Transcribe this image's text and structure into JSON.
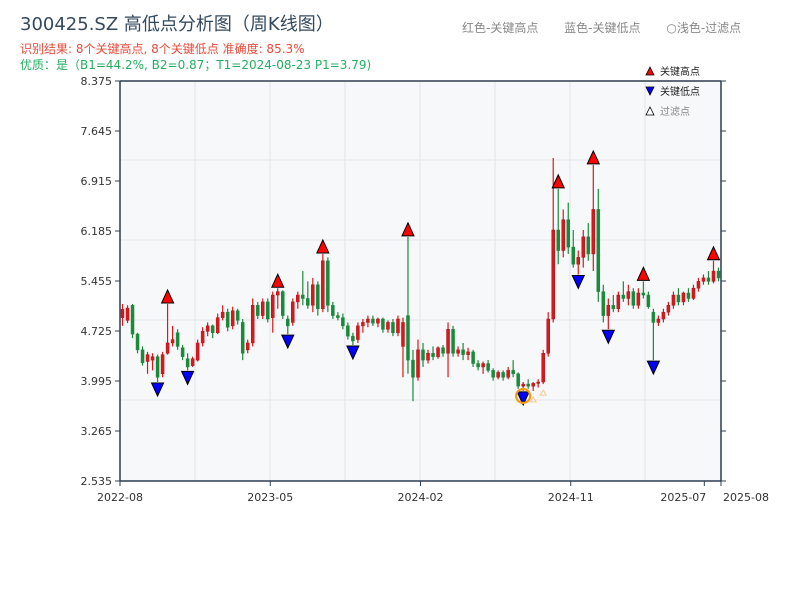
{
  "header": {
    "title": "300425.SZ 高低点分析图（周K线图）",
    "result_line": "识别结果: 8个关键高点, 8个关键低点  准确度: 85.3%",
    "quality_line": "优质：是（B1=44.2%, B2=0.87；T1=2024-08-23 P1=3.79)",
    "legend_red": "红色-关键高点",
    "legend_blue": "蓝色-关键低点",
    "legend_light": "○浅色-过滤点"
  },
  "colors": {
    "up": "#d7191c",
    "down": "#1a8a3a",
    "high_marker": "#ff0000",
    "low_marker": "#0000ff",
    "filtered": "#f39c12",
    "plot_bg": "#f7f8fa",
    "axis": "#2c3e50"
  },
  "chart_data": {
    "type": "candlestick",
    "title": "300425.SZ 高低点分析图（周K线图）",
    "ylim": [
      2.535,
      8.375
    ],
    "yticks": [
      "8.375",
      "7.645",
      "6.915",
      "6.185",
      "5.455",
      "4.725",
      "3.995",
      "3.265",
      "2.535"
    ],
    "xticks": [
      "2022-08",
      "2023-05",
      "2024-02",
      "2024-11",
      "2025-07",
      "2025-08"
    ],
    "xtick_months": [
      0,
      9,
      18,
      27,
      35,
      36
    ],
    "x_months_span": 36,
    "grid": true,
    "legend_placement": "top-right",
    "legend": [
      {
        "label": "关键高点",
        "symbol": "triangle-up",
        "color": "#ff0000"
      },
      {
        "label": "关键低点",
        "symbol": "triangle-down",
        "color": "#0000ff"
      },
      {
        "label": "过滤点",
        "symbol": "triangle-up-hollow",
        "color": "#ffffff"
      }
    ],
    "ohlc": [
      [
        4.92,
        5.12,
        4.8,
        5.04
      ],
      [
        4.88,
        5.1,
        4.84,
        5.06
      ],
      [
        5.1,
        5.12,
        4.62,
        4.68
      ],
      [
        4.68,
        4.7,
        4.4,
        4.45
      ],
      [
        4.45,
        4.5,
        4.22,
        4.26
      ],
      [
        4.28,
        4.42,
        4.1,
        4.38
      ],
      [
        4.3,
        4.4,
        4.15,
        4.35
      ],
      [
        4.35,
        4.38,
        3.98,
        4.05
      ],
      [
        4.1,
        4.42,
        4.05,
        4.38
      ],
      [
        4.4,
        5.12,
        4.38,
        4.55
      ],
      [
        4.55,
        4.8,
        4.5,
        4.6
      ],
      [
        4.7,
        4.75,
        4.45,
        4.5
      ],
      [
        4.48,
        4.52,
        4.3,
        4.35
      ],
      [
        4.32,
        4.4,
        4.15,
        4.2
      ],
      [
        4.22,
        4.35,
        4.2,
        4.32
      ],
      [
        4.3,
        4.6,
        4.28,
        4.55
      ],
      [
        4.55,
        4.78,
        4.5,
        4.72
      ],
      [
        4.72,
        4.85,
        4.65,
        4.8
      ],
      [
        4.8,
        4.82,
        4.62,
        4.7
      ],
      [
        4.7,
        4.98,
        4.68,
        4.92
      ],
      [
        4.92,
        5.1,
        4.88,
        5.0
      ],
      [
        5.0,
        5.05,
        4.72,
        4.78
      ],
      [
        4.8,
        5.08,
        4.75,
        5.02
      ],
      [
        5.02,
        5.05,
        4.82,
        4.88
      ],
      [
        4.85,
        4.9,
        4.3,
        4.4
      ],
      [
        4.45,
        4.6,
        4.4,
        4.55
      ],
      [
        4.55,
        5.2,
        4.5,
        5.1
      ],
      [
        5.1,
        5.15,
        4.9,
        4.95
      ],
      [
        4.95,
        5.2,
        4.9,
        5.15
      ],
      [
        5.15,
        5.2,
        4.85,
        4.9
      ],
      [
        4.92,
        5.3,
        4.7,
        5.25
      ],
      [
        5.25,
        5.35,
        5.05,
        5.3
      ],
      [
        5.3,
        5.32,
        4.9,
        4.95
      ],
      [
        4.9,
        4.95,
        4.68,
        4.8
      ],
      [
        4.85,
        5.2,
        4.8,
        5.15
      ],
      [
        5.15,
        5.3,
        5.05,
        5.25
      ],
      [
        5.25,
        5.6,
        5.1,
        5.2
      ],
      [
        5.2,
        5.45,
        5.05,
        5.1
      ],
      [
        5.1,
        5.5,
        5.0,
        5.4
      ],
      [
        5.4,
        5.45,
        4.95,
        5.05
      ],
      [
        5.05,
        5.85,
        5.0,
        5.75
      ],
      [
        5.75,
        5.8,
        5.0,
        5.1
      ],
      [
        5.1,
        5.15,
        4.9,
        4.95
      ],
      [
        4.95,
        5.0,
        4.88,
        4.92
      ],
      [
        4.92,
        4.98,
        4.75,
        4.8
      ],
      [
        4.8,
        4.85,
        4.6,
        4.65
      ],
      [
        4.65,
        4.7,
        4.52,
        4.58
      ],
      [
        4.6,
        4.85,
        4.55,
        4.8
      ],
      [
        4.8,
        4.9,
        4.7,
        4.85
      ],
      [
        4.85,
        4.95,
        4.78,
        4.9
      ],
      [
        4.9,
        4.95,
        4.8,
        4.84
      ],
      [
        4.84,
        4.92,
        4.78,
        4.9
      ],
      [
        4.9,
        4.92,
        4.7,
        4.75
      ],
      [
        4.75,
        4.88,
        4.7,
        4.85
      ],
      [
        4.85,
        4.9,
        4.65,
        4.7
      ],
      [
        4.7,
        4.95,
        4.65,
        4.9
      ],
      [
        4.5,
        4.92,
        4.05,
        4.85
      ],
      [
        4.95,
        6.1,
        4.1,
        4.3
      ],
      [
        4.3,
        4.45,
        3.7,
        4.05
      ],
      [
        4.05,
        4.6,
        4.0,
        4.45
      ],
      [
        4.45,
        4.55,
        4.2,
        4.3
      ],
      [
        4.3,
        4.45,
        4.25,
        4.4
      ],
      [
        4.4,
        4.5,
        4.3,
        4.35
      ],
      [
        4.35,
        4.5,
        4.32,
        4.48
      ],
      [
        4.48,
        4.52,
        4.35,
        4.4
      ],
      [
        4.4,
        4.85,
        4.05,
        4.75
      ],
      [
        4.75,
        4.8,
        4.35,
        4.4
      ],
      [
        4.4,
        4.5,
        4.35,
        4.45
      ],
      [
        4.45,
        4.55,
        4.3,
        4.38
      ],
      [
        4.38,
        4.48,
        4.3,
        4.42
      ],
      [
        4.42,
        4.45,
        4.2,
        4.25
      ],
      [
        4.25,
        4.3,
        4.15,
        4.2
      ],
      [
        4.2,
        4.28,
        4.1,
        4.25
      ],
      [
        4.25,
        4.3,
        4.12,
        4.15
      ],
      [
        4.15,
        4.18,
        4.0,
        4.05
      ],
      [
        4.05,
        4.15,
        4.02,
        4.12
      ],
      [
        4.12,
        4.15,
        4.0,
        4.05
      ],
      [
        4.05,
        4.2,
        4.02,
        4.15
      ],
      [
        4.15,
        4.3,
        4.05,
        4.1
      ],
      [
        4.1,
        4.12,
        3.88,
        3.92
      ],
      [
        3.92,
        3.98,
        3.85,
        3.95
      ],
      [
        3.95,
        4.02,
        3.88,
        3.92
      ],
      [
        3.92,
        3.98,
        3.85,
        3.96
      ],
      [
        3.96,
        4.02,
        3.9,
        3.98
      ],
      [
        3.98,
        4.45,
        3.95,
        4.4
      ],
      [
        4.4,
        5.0,
        4.35,
        4.9
      ],
      [
        4.9,
        7.25,
        4.85,
        6.2
      ],
      [
        6.2,
        6.8,
        5.7,
        5.9
      ],
      [
        5.9,
        6.5,
        5.8,
        6.35
      ],
      [
        6.35,
        6.6,
        5.85,
        5.95
      ],
      [
        5.95,
        6.2,
        5.65,
        5.7
      ],
      [
        5.7,
        5.9,
        5.55,
        5.8
      ],
      [
        5.8,
        6.2,
        5.65,
        6.1
      ],
      [
        6.1,
        6.3,
        5.75,
        5.85
      ],
      [
        5.85,
        7.15,
        5.6,
        6.5
      ],
      [
        6.5,
        6.8,
        5.15,
        5.3
      ],
      [
        5.3,
        5.4,
        4.85,
        4.95
      ],
      [
        4.95,
        5.2,
        4.75,
        5.1
      ],
      [
        5.1,
        5.25,
        5.0,
        5.05
      ],
      [
        5.05,
        5.3,
        5.0,
        5.25
      ],
      [
        5.25,
        5.45,
        5.15,
        5.2
      ],
      [
        5.2,
        5.4,
        5.1,
        5.3
      ],
      [
        5.3,
        5.35,
        5.05,
        5.1
      ],
      [
        5.1,
        5.35,
        5.05,
        5.28
      ],
      [
        5.28,
        5.45,
        5.2,
        5.25
      ],
      [
        5.25,
        5.3,
        5.05,
        5.08
      ],
      [
        5.0,
        5.05,
        4.3,
        4.85
      ],
      [
        4.85,
        4.95,
        4.8,
        4.9
      ],
      [
        4.9,
        5.05,
        4.85,
        5.0
      ],
      [
        5.0,
        5.15,
        4.95,
        5.1
      ],
      [
        5.1,
        5.3,
        5.05,
        5.25
      ],
      [
        5.25,
        5.35,
        5.1,
        5.15
      ],
      [
        5.15,
        5.3,
        5.1,
        5.28
      ],
      [
        5.28,
        5.35,
        5.15,
        5.2
      ],
      [
        5.2,
        5.4,
        5.18,
        5.35
      ],
      [
        5.35,
        5.5,
        5.3,
        5.45
      ],
      [
        5.45,
        5.55,
        5.4,
        5.5
      ],
      [
        5.5,
        5.6,
        5.4,
        5.45
      ],
      [
        5.45,
        5.75,
        5.42,
        5.6
      ],
      [
        5.6,
        5.65,
        5.45,
        5.5
      ]
    ],
    "key_highs": [
      {
        "i": 9,
        "price": 5.12
      },
      {
        "i": 31,
        "price": 5.35
      },
      {
        "i": 40,
        "price": 5.85
      },
      {
        "i": 57,
        "price": 6.1
      },
      {
        "i": 87,
        "price": 6.8
      },
      {
        "i": 94,
        "price": 7.15
      },
      {
        "i": 104,
        "price": 5.45
      },
      {
        "i": 118,
        "price": 5.75
      }
    ],
    "key_lows": [
      {
        "i": 7,
        "price": 3.98
      },
      {
        "i": 13,
        "price": 4.15
      },
      {
        "i": 33,
        "price": 4.68
      },
      {
        "i": 46,
        "price": 4.52
      },
      {
        "i": 80,
        "price": 3.85
      },
      {
        "i": 91,
        "price": 5.55
      },
      {
        "i": 97,
        "price": 4.75
      },
      {
        "i": 106,
        "price": 4.3
      }
    ],
    "circled_low": {
      "i": 80,
      "price": 3.85
    },
    "filtered_points": [
      {
        "i": 82,
        "price": 3.85
      },
      {
        "i": 84,
        "price": 3.95
      }
    ]
  }
}
